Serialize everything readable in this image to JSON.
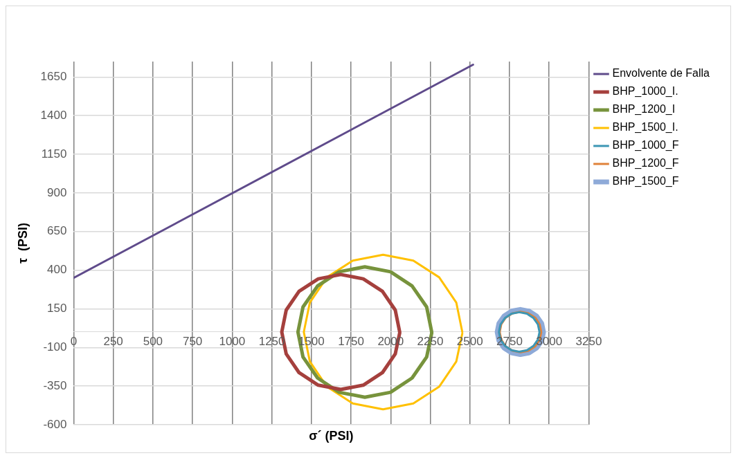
{
  "chart_data": {
    "type": "line",
    "xlabel": "σ´ (PSI)",
    "ylabel": "τ  (PSI)",
    "xlim": [
      0,
      3250
    ],
    "ylim": [
      -600,
      1750
    ],
    "xticks": [
      0,
      250,
      500,
      750,
      1000,
      1250,
      1500,
      1750,
      2000,
      2250,
      2500,
      2750,
      3000,
      3250
    ],
    "yticks": [
      -600,
      -350,
      -100,
      150,
      400,
      650,
      900,
      1150,
      1400,
      1650
    ],
    "grid": true,
    "legend": "right",
    "marker": "none",
    "line_style": "solid",
    "series": [
      {
        "name": "Envolvente de Falla",
        "color": "#5f4b8b",
        "x": [
          0,
          2520
        ],
        "values": [
          350,
          1730
        ]
      },
      {
        "name": "BHP_1000_I.",
        "color": "#a5403d",
        "x": [
          2057,
          2029,
          1948,
          1827,
          1685,
          1543,
          1422,
          1341,
          1313,
          1341,
          1422,
          1543,
          1685,
          1827,
          1948,
          2029,
          2057
        ],
        "values": [
          0,
          142,
          263,
          344,
          372,
          344,
          263,
          142,
          0,
          -142,
          -263,
          -344,
          -372,
          -344,
          -263,
          -142,
          -6
        ]
      },
      {
        "name": "BHP_1200_I",
        "color": "#77933c",
        "x": [
          2259,
          2227,
          2135,
          1999,
          1837,
          1675,
          1539,
          1447,
          1415,
          1447,
          1539,
          1675,
          1837,
          1999,
          2135,
          2227,
          2259
        ],
        "values": [
          0,
          162,
          298,
          390,
          422,
          390,
          298,
          162,
          0,
          -162,
          -298,
          -390,
          -422,
          -390,
          -298,
          -162,
          -7
        ]
      },
      {
        "name": "BHP_1500_I.",
        "color": "#ffc000",
        "x": [
          2452,
          2414,
          2306,
          2143,
          1952,
          1761,
          1598,
          1490,
          1452,
          1490,
          1598,
          1761,
          1952,
          2143,
          2306,
          2414,
          2452
        ],
        "values": [
          0,
          191,
          354,
          462,
          500,
          462,
          354,
          191,
          0,
          -191,
          -354,
          -462,
          -500,
          -462,
          -354,
          -191,
          -9
        ]
      },
      {
        "name": "BHP_1000_F",
        "color": "#3c96b4",
        "x": [
          2939,
          2929,
          2901,
          2860,
          2811,
          2762,
          2721,
          2693,
          2683,
          2693,
          2721,
          2762,
          2811,
          2860,
          2901,
          2929,
          2939
        ],
        "values": [
          0,
          49,
          90,
          118,
          128,
          118,
          90,
          49,
          0,
          -49,
          -90,
          -118,
          -128,
          -118,
          -90,
          -49,
          -2
        ]
      },
      {
        "name": "BHP_1200_F",
        "color": "#e0823a",
        "x": [
          2950,
          2940,
          2912,
          2869,
          2819,
          2769,
          2726,
          2698,
          2688,
          2698,
          2726,
          2769,
          2819,
          2869,
          2912,
          2940,
          2950
        ],
        "values": [
          0,
          50,
          93,
          121,
          131,
          121,
          93,
          50,
          0,
          -50,
          -93,
          -121,
          -131,
          -121,
          -93,
          -50,
          -2
        ]
      },
      {
        "name": "BHP_1500_F",
        "color": "#8eaad8",
        "x": [
          2964,
          2953,
          2921,
          2874,
          2818,
          2762,
          2715,
          2683,
          2672,
          2683,
          2715,
          2762,
          2818,
          2874,
          2921,
          2953,
          2964
        ],
        "values": [
          0,
          56,
          103,
          135,
          146,
          135,
          103,
          56,
          0,
          -56,
          -103,
          -135,
          -146,
          -135,
          -103,
          -56,
          -3
        ]
      }
    ]
  }
}
